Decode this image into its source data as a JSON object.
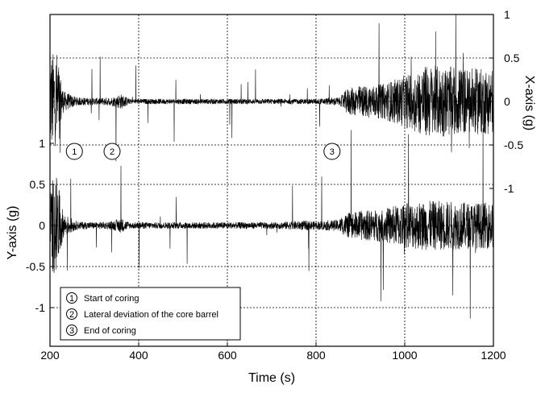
{
  "chart_data": {
    "type": "line",
    "xlabel": "Time (s)",
    "ylabel_left": "Y-axis (g)",
    "ylabel_right": "X-axis (g)",
    "xlim": [
      200,
      1200
    ],
    "x_ticks": [
      "200",
      "400",
      "600",
      "800",
      "1000",
      "1200"
    ],
    "y_left_ticks": [
      "1",
      "0.5",
      "0",
      "-0.5",
      "-1"
    ],
    "y_right_ticks": [
      "1",
      "0.5",
      "0",
      "-0.5",
      "-1"
    ],
    "grid": true,
    "series": [
      {
        "axis": "right",
        "x": [
          200,
          215,
          230,
          260,
          300,
          340,
          360,
          380,
          400,
          500,
          600,
          700,
          800,
          855,
          870,
          900,
          950,
          1000,
          1050,
          1100,
          1150,
          1200
        ],
        "envelope": [
          0.55,
          0.6,
          0.12,
          0.05,
          0.04,
          0.05,
          0.09,
          0.03,
          0.03,
          0.03,
          0.03,
          0.03,
          0.03,
          0.05,
          0.15,
          0.18,
          0.2,
          0.3,
          0.42,
          0.4,
          0.38,
          0.38
        ]
      },
      {
        "axis": "left",
        "x": [
          200,
          215,
          230,
          260,
          300,
          340,
          360,
          380,
          400,
          500,
          600,
          700,
          780,
          800,
          850,
          870,
          900,
          950,
          1000,
          1050,
          1100,
          1150,
          1200
        ],
        "envelope": [
          0.55,
          0.6,
          0.15,
          0.05,
          0.04,
          0.05,
          0.09,
          0.04,
          0.04,
          0.04,
          0.04,
          0.04,
          0.06,
          0.05,
          0.07,
          0.15,
          0.18,
          0.2,
          0.28,
          0.3,
          0.3,
          0.28,
          0.28
        ]
      }
    ],
    "markers": [
      {
        "label": "1",
        "x": 255
      },
      {
        "label": "2",
        "x": 340
      },
      {
        "label": "3",
        "x": 836
      }
    ]
  },
  "legend": {
    "items": [
      {
        "num": "1",
        "text": "Start of coring"
      },
      {
        "num": "2",
        "text": "Lateral deviation of the core barrel"
      },
      {
        "num": "3",
        "text": "End of coring"
      }
    ]
  }
}
